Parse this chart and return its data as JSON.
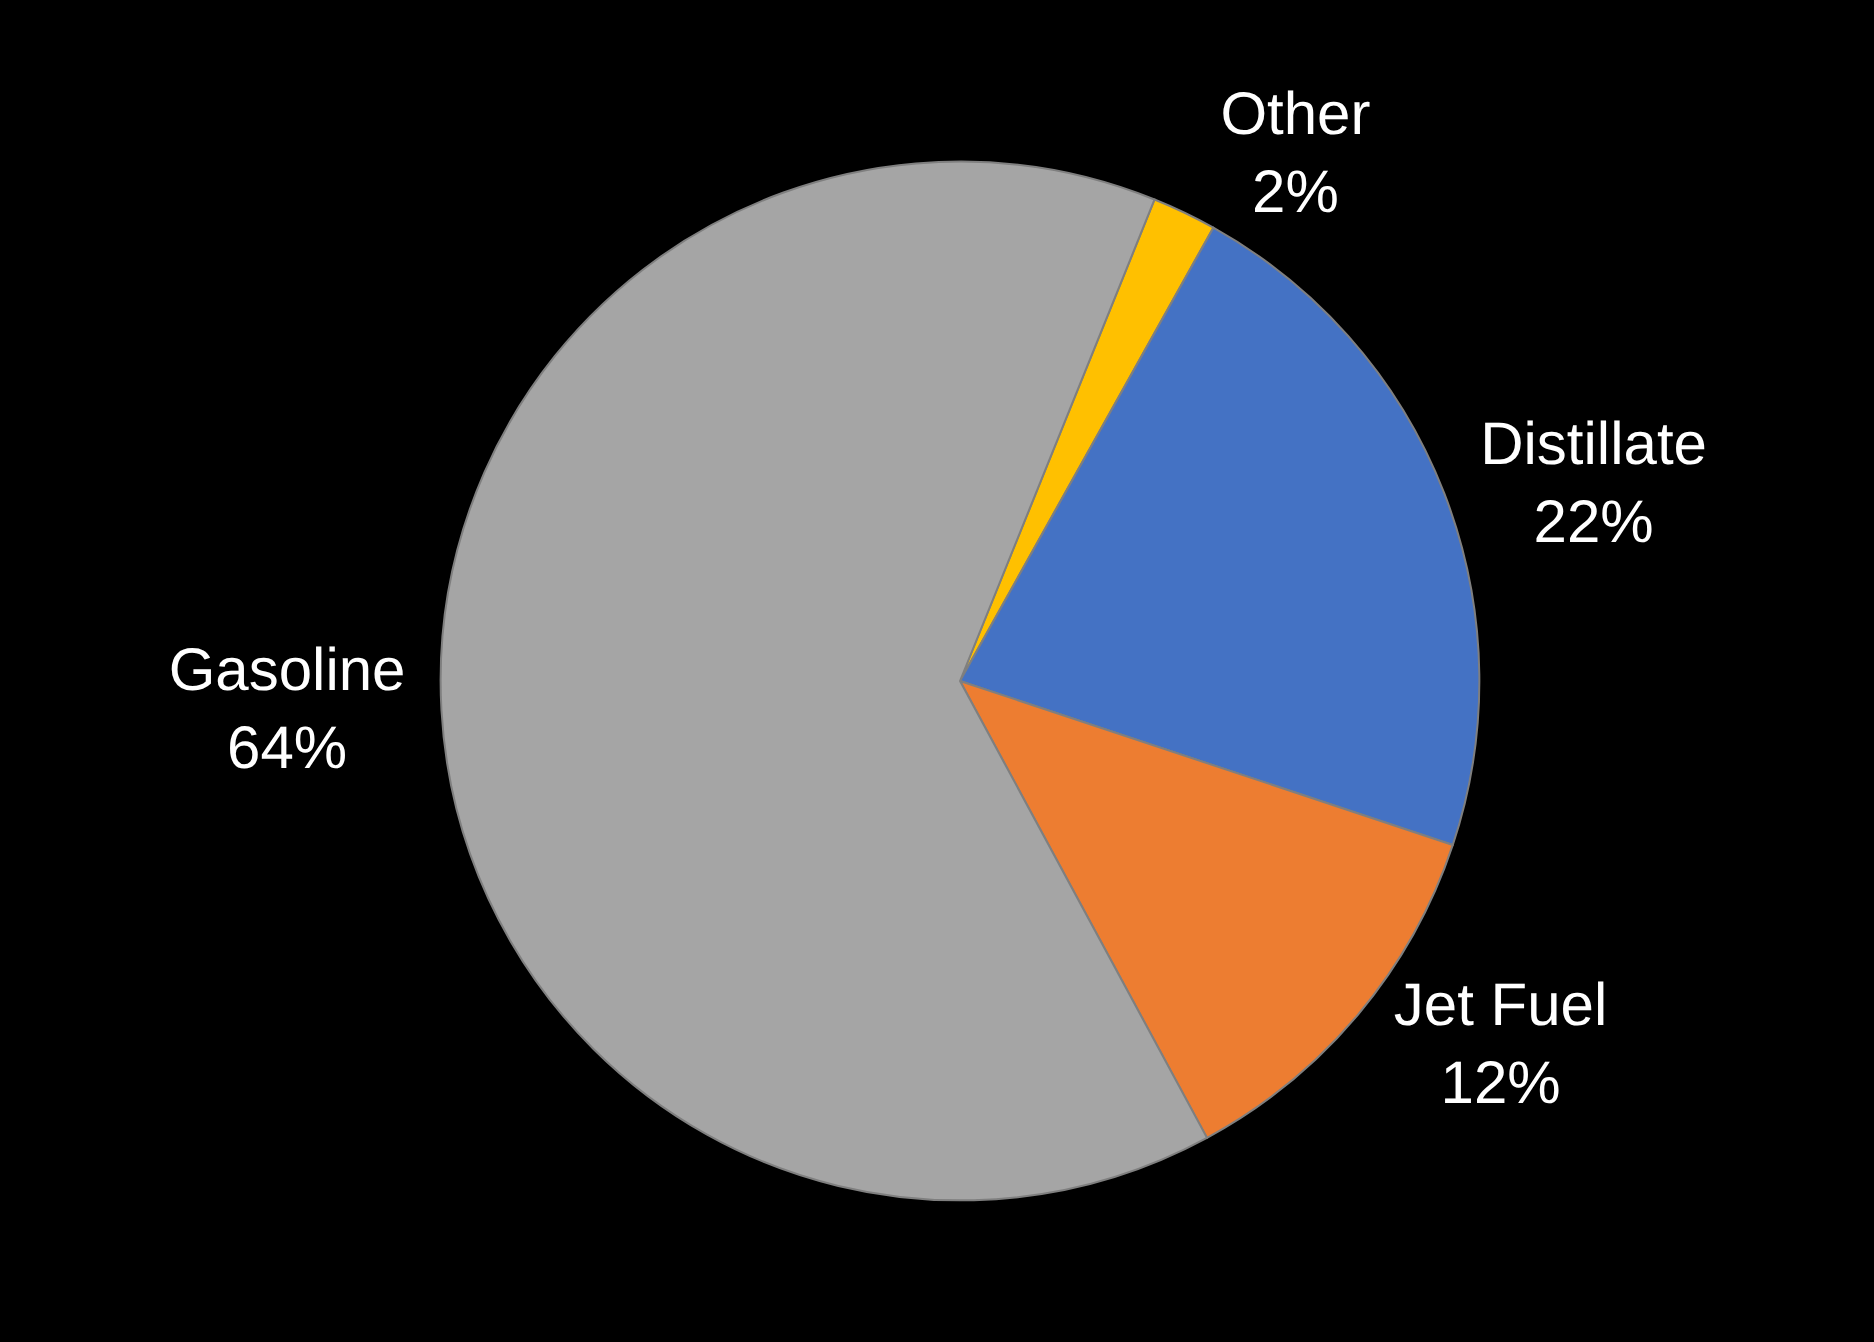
{
  "chart_data": {
    "type": "pie",
    "categories": [
      "Other",
      "Distillate",
      "Jet Fuel",
      "Gasoline"
    ],
    "values": [
      2,
      22,
      12,
      64
    ],
    "value_labels": [
      "2%",
      "22%",
      "12%",
      "64%"
    ],
    "colors": [
      "#ffc000",
      "#4472c4",
      "#ed7d31",
      "#a5a5a5"
    ],
    "legend": false
  }
}
